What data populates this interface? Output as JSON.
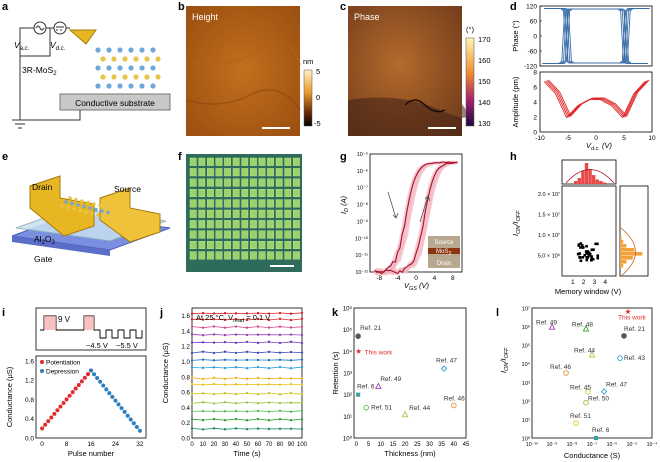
{
  "panels": {
    "a": {
      "letter": "a",
      "vac": "V",
      "vac_sub": "a.c.",
      "vdc": "V",
      "vdc_sub": "d.c.",
      "material": "3R-MoS",
      "material_sub": "2",
      "substrate": "Conductive substrate"
    },
    "b": {
      "letter": "b",
      "title": "Height",
      "cbar_unit": "nm",
      "cbar_ticks": [
        "5",
        "0",
        "-5"
      ]
    },
    "c": {
      "letter": "c",
      "title": "Phase",
      "cbar_unit": "(°)",
      "cbar_ticks": [
        "170",
        "160",
        "150",
        "140",
        "130"
      ]
    },
    "d": {
      "letter": "d"
    },
    "e": {
      "letter": "e",
      "drain": "Drain",
      "source": "Source",
      "oxide": "Al",
      "oxide_sub": "2",
      "oxide_end": "O",
      "oxide_sub2": "3",
      "gate": "Gate"
    },
    "f": {
      "letter": "f"
    },
    "g": {
      "letter": "g",
      "inset_source": "Source",
      "inset_mos": "MoS",
      "inset_mos_sub": "2",
      "inset_drain": "Drain"
    },
    "h": {
      "letter": "h"
    },
    "i": {
      "letter": "i",
      "pulse_high": "9 V",
      "pulse_low1": "−4.5 V",
      "pulse_low2": "−5.5 V",
      "legend_pot": "Potentiation",
      "legend_dep": "Depression"
    },
    "j": {
      "letter": "j",
      "annotation": "At 25 °C, V",
      "annotation_sub": "read",
      "annotation_end": " = 0.1 V"
    },
    "k": {
      "letter": "k"
    },
    "l": {
      "letter": "l"
    }
  },
  "chart_data": [
    {
      "id": "d_phase",
      "type": "line",
      "ylabel": "Phase (°)",
      "xlim": [
        -10,
        10
      ],
      "ylim": [
        -120,
        120
      ],
      "yticks": [
        -120,
        -60,
        0,
        60,
        120
      ],
      "series": [
        {
          "x": [
            -9,
            -6,
            -5.5,
            -5,
            -4.5,
            4.5,
            5,
            5.5,
            6,
            9
          ],
          "y": [
            110,
            110,
            100,
            -100,
            -108,
            -108,
            -100,
            100,
            110,
            110
          ]
        }
      ]
    },
    {
      "id": "d_amp",
      "type": "line",
      "xlabel": "V",
      "xlabel_sub": "d.c.",
      "xlabel_end": " (V)",
      "ylabel": "Amplitude (pm)",
      "xlim": [
        -10,
        10
      ],
      "ylim": [
        0,
        8
      ],
      "xticks": [
        -10,
        -5,
        0,
        5,
        10
      ],
      "yticks": [
        0,
        2,
        4,
        6,
        8
      ],
      "series": [
        {
          "x": [
            -9,
            -7,
            -5,
            -3,
            -1,
            1,
            3,
            5,
            7,
            9
          ],
          "y": [
            6.8,
            5.2,
            2.0,
            3.6,
            4.4,
            4.4,
            3.6,
            2.0,
            5.2,
            6.8
          ]
        }
      ]
    },
    {
      "id": "g",
      "type": "line",
      "xlabel": "V",
      "xlabel_sub": "GS",
      "xlabel_end": " (V)",
      "ylabel": "I",
      "ylabel_sub": "D",
      "ylabel_end": " (A)",
      "xlim": [
        -10,
        10
      ],
      "ylim_exp": [
        -12,
        -5
      ],
      "xticks": [
        -8,
        -4,
        0,
        4,
        8
      ],
      "ytick_labels": [
        "10⁻⁵",
        "10⁻⁶",
        "10⁻⁷",
        "10⁻⁸",
        "10⁻⁹",
        "10⁻¹⁰",
        "10⁻¹¹",
        "10⁻¹²"
      ]
    },
    {
      "id": "h",
      "type": "scatter",
      "xlabel": "Memory window (V)",
      "ylabel": "I",
      "ylabel_sub": "ON",
      "ylabel_mid": "/I",
      "ylabel_sub2": "OFF",
      "xlim": [
        0,
        5
      ],
      "ylim": [
        0,
        22000000.0
      ],
      "xticks": [
        1,
        2,
        3,
        4
      ],
      "ytick_labels": [
        "5.0 × 10⁶",
        "1.0 × 10⁷",
        "1.5 × 10⁷",
        "2.0 × 10⁷"
      ],
      "ytick_values": [
        5000000.0,
        10000000.0,
        15000000.0,
        20000000.0
      ]
    },
    {
      "id": "i",
      "type": "scatter",
      "xlabel": "Pulse number",
      "ylabel": "Conductance (μS)",
      "xlim": [
        -2,
        34
      ],
      "ylim": [
        0,
        1.7
      ],
      "xticks": [
        0,
        8,
        16,
        24,
        32
      ],
      "yticks": [
        0,
        0.4,
        0.8,
        1.2,
        1.6
      ],
      "series": [
        {
          "name": "Potentiation",
          "color": "#e02b2b"
        },
        {
          "name": "Depression",
          "color": "#2c7fbf"
        }
      ]
    },
    {
      "id": "j",
      "type": "line",
      "xlabel": "Time (s)",
      "ylabel": "Conductance (μS)",
      "xlim": [
        0,
        100
      ],
      "ylim": [
        0,
        1.7
      ],
      "xticks": [
        0,
        10,
        20,
        30,
        40,
        50,
        60,
        70,
        80,
        90,
        100
      ],
      "yticks": [
        0,
        0.2,
        0.4,
        0.6,
        0.8,
        1.0,
        1.2,
        1.4,
        1.6
      ],
      "series": [
        {
          "color": "#d62728",
          "y": 1.63
        },
        {
          "color": "#d62728",
          "y": 1.55
        },
        {
          "color": "#d44d8f",
          "y": 1.45
        },
        {
          "color": "#9b3fbf",
          "y": 1.35
        },
        {
          "color": "#6a3fbf",
          "y": 1.25
        },
        {
          "color": "#3f51b5",
          "y": 1.12
        },
        {
          "color": "#1f77b4",
          "y": 1.02
        },
        {
          "color": "#2a9fd6",
          "y": 0.92
        },
        {
          "color": "#f2b01e",
          "y": 0.78
        },
        {
          "color": "#e8c31f",
          "y": 0.7
        },
        {
          "color": "#c6c62a",
          "y": 0.58
        },
        {
          "color": "#9bc53d",
          "y": 0.46
        },
        {
          "color": "#5cb85c",
          "y": 0.35
        },
        {
          "color": "#2ca02c",
          "y": 0.24
        },
        {
          "color": "#1e8f5e",
          "y": 0.12
        }
      ]
    },
    {
      "id": "k",
      "type": "scatter",
      "xlabel": "Thickness (nm)",
      "ylabel": "Retention (s)",
      "xlim": [
        -1,
        45
      ],
      "ylim_exp": [
        0,
        6
      ],
      "xticks": [
        0,
        5,
        10,
        15,
        20,
        25,
        30,
        35,
        40,
        45
      ],
      "ytick_labels": [
        "10⁰",
        "10¹",
        "10²",
        "10³",
        "10⁴",
        "10⁵",
        "10⁶"
      ],
      "points": [
        {
          "label": "Ref. 21",
          "x": 0.7,
          "exp": 4.7,
          "color": "#555555",
          "shape": "circle"
        },
        {
          "label": "This work",
          "x": 0.9,
          "exp": 4.0,
          "color": "#e02b2b",
          "shape": "star"
        },
        {
          "label": "Ref. 49",
          "x": 9,
          "exp": 2.4,
          "color": "#9b3fbf",
          "shape": "triangle"
        },
        {
          "label": "Ref. 6",
          "x": 0.7,
          "exp": 2.0,
          "color": "#3aa0a0",
          "shape": "square"
        },
        {
          "label": "Ref. 51",
          "x": 4,
          "exp": 1.4,
          "color": "#5cb85c",
          "shape": "circle"
        },
        {
          "label": "Ref. 44",
          "x": 20,
          "exp": 1.1,
          "color": "#a6c84a",
          "shape": "triangle"
        },
        {
          "label": "Ref. 47",
          "x": 36,
          "exp": 3.2,
          "color": "#2a9fd6",
          "shape": "diamond"
        },
        {
          "label": "Ref. 46",
          "x": 40,
          "exp": 1.5,
          "color": "#e8913a",
          "shape": "circle"
        }
      ]
    },
    {
      "id": "l",
      "type": "scatter",
      "xlabel": "Conductance (S)",
      "ylabel": "I",
      "ylabel_sub": "ON",
      "ylabel_mid": "/I",
      "ylabel_sub2": "OFF",
      "xlim_exp": [
        -10,
        -4
      ],
      "ylim_exp": [
        0,
        7
      ],
      "xtick_labels": [
        "10⁻¹⁰",
        "10⁻⁹",
        "10⁻⁸",
        "10⁻⁷",
        "10⁻⁶",
        "10⁻⁵",
        "10⁻⁴"
      ],
      "ytick_labels": [
        "10⁰",
        "10¹",
        "10²",
        "10³",
        "10⁴",
        "10⁵",
        "10⁶",
        "10⁷"
      ],
      "points": [
        {
          "label": "This work",
          "xexp": -5.2,
          "exp": 6.8,
          "color": "#e02b2b",
          "shape": "star"
        },
        {
          "label": "Ref. 49",
          "xexp": -9.0,
          "exp": 6.0,
          "color": "#9b3fbf",
          "shape": "triangle"
        },
        {
          "label": "Ref. 48",
          "xexp": -7.3,
          "exp": 5.9,
          "color": "#2ca02c",
          "shape": "triangle"
        },
        {
          "label": "Ref. 21",
          "xexp": -5.4,
          "exp": 5.5,
          "color": "#555555",
          "shape": "circle"
        },
        {
          "label": "Ref. 44",
          "xexp": -7.0,
          "exp": 4.5,
          "color": "#a6c84a",
          "shape": "triangle"
        },
        {
          "label": "Ref. 43",
          "xexp": -5.6,
          "exp": 4.3,
          "color": "#2a9fd6",
          "shape": "circle"
        },
        {
          "label": "Ref. 46",
          "xexp": -8.3,
          "exp": 3.5,
          "color": "#e8913a",
          "shape": "circle"
        },
        {
          "label": "Ref. 45",
          "xexp": -7.2,
          "exp": 2.5,
          "color": "#c6c62a",
          "shape": "circle"
        },
        {
          "label": "Ref. 47",
          "xexp": -6.4,
          "exp": 2.5,
          "color": "#2a9fd6",
          "shape": "diamond"
        },
        {
          "label": "Ref. 50",
          "xexp": -7.3,
          "exp": 1.9,
          "color": "#9bc53d",
          "shape": "circle"
        },
        {
          "label": "Ref. 51",
          "xexp": -7.8,
          "exp": 0.8,
          "color": "#e8c31f",
          "shape": "circle"
        },
        {
          "label": "Ref. 6",
          "xexp": -6.8,
          "exp": 0.0,
          "color": "#3aa0a0",
          "shape": "square"
        }
      ]
    }
  ]
}
